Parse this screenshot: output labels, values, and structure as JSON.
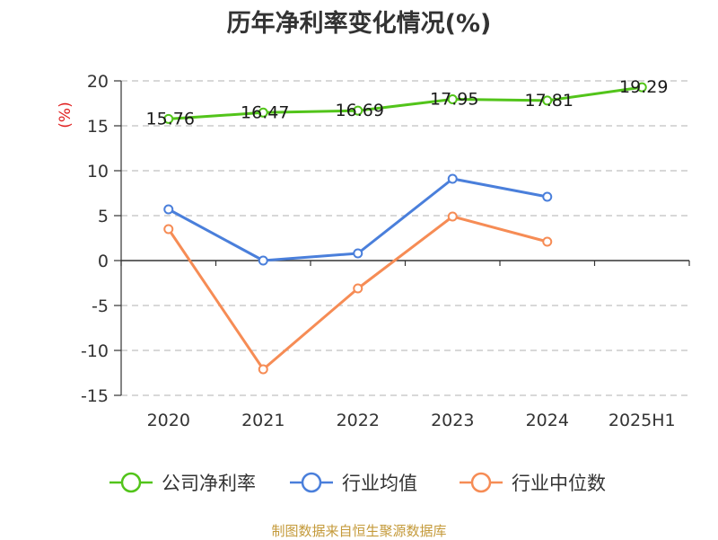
{
  "chart_data": {
    "type": "line",
    "title": "历年净利率变化情况(%)",
    "ylabel": "(%)",
    "categories": [
      "2020",
      "2021",
      "2022",
      "2023",
      "2024",
      "2025H1"
    ],
    "y_ticks": [
      20,
      15,
      10,
      5,
      0,
      -5,
      -10,
      -15
    ],
    "ylim": [
      -15,
      20
    ],
    "grid": true,
    "legend_position": "bottom",
    "series": [
      {
        "name": "公司净利率",
        "color": "#52c41a",
        "values": [
          15.76,
          16.47,
          16.69,
          17.95,
          17.81,
          19.29
        ],
        "labels": [
          "15.76",
          "16.47",
          "16.69",
          "17.95",
          "17.81",
          "19.29"
        ]
      },
      {
        "name": "行业均值",
        "color": "#4a7fdb",
        "values": [
          5.7,
          0.0,
          0.8,
          9.1,
          7.1,
          null
        ]
      },
      {
        "name": "行业中位数",
        "color": "#f68c55",
        "values": [
          3.5,
          -12.1,
          -3.1,
          4.9,
          2.1,
          null
        ]
      }
    ]
  },
  "source_text": "制图数据来自恒生聚源数据库"
}
